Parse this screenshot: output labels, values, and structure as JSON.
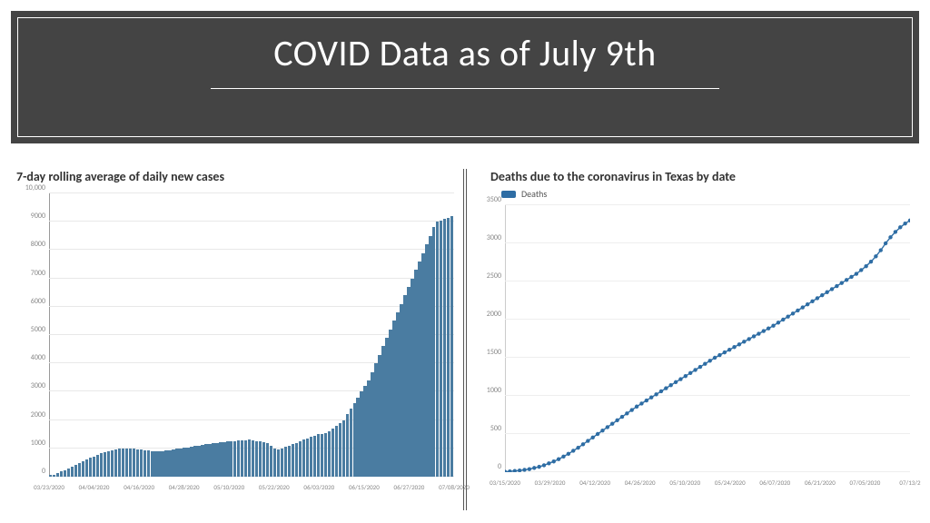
{
  "title": {
    "text": "COVID Data as of July 9th",
    "banner_bg": "#444444",
    "banner_border": "#ffffff",
    "text_color": "#ffffff",
    "fontsize": 40
  },
  "cases_chart": {
    "type": "bar",
    "title": "7-day rolling average of daily new cases",
    "title_fontsize": 14,
    "title_color": "#333333",
    "bar_color": "#4a7ca1",
    "grid_color": "#e8e8e8",
    "axis_color": "#999999",
    "tick_fontsize": 8,
    "y_ticks": [
      0,
      1000,
      2000,
      3000,
      4000,
      5000,
      6000,
      7000,
      8000,
      9000,
      10000
    ],
    "y_labels": [
      "0",
      "1000",
      "2000",
      "3000",
      "4000",
      "5000",
      "6000",
      "7000",
      "8000",
      "9000",
      "10,000"
    ],
    "ylim": [
      0,
      10000
    ],
    "x_labels": [
      "03/23/2020",
      "04/04/2020",
      "04/16/2020",
      "04/28/2020",
      "05/10/2020",
      "05/22/2020",
      "06/03/2020",
      "06/15/2020",
      "06/27/2020",
      "07/08/2020"
    ],
    "values": [
      50,
      80,
      120,
      180,
      240,
      300,
      360,
      420,
      480,
      540,
      600,
      660,
      720,
      770,
      820,
      860,
      900,
      930,
      960,
      980,
      1000,
      1010,
      1000,
      990,
      970,
      950,
      930,
      920,
      910,
      900,
      900,
      910,
      920,
      940,
      960,
      980,
      1000,
      1020,
      1040,
      1060,
      1080,
      1100,
      1120,
      1140,
      1160,
      1180,
      1200,
      1220,
      1230,
      1240,
      1250,
      1260,
      1270,
      1280,
      1290,
      1300,
      1280,
      1260,
      1240,
      1220,
      1200,
      1100,
      1000,
      950,
      1000,
      1050,
      1100,
      1150,
      1200,
      1250,
      1300,
      1350,
      1400,
      1450,
      1500,
      1500,
      1550,
      1600,
      1700,
      1800,
      1900,
      2000,
      2200,
      2400,
      2600,
      2800,
      3000,
      3200,
      3400,
      3700,
      4000,
      4300,
      4600,
      4900,
      5200,
      5500,
      5800,
      6100,
      6400,
      6700,
      7000,
      7300,
      7600,
      7900,
      8200,
      8500,
      8800,
      9000,
      9050,
      9100,
      9150,
      9200
    ]
  },
  "deaths_chart": {
    "type": "line",
    "title": "Deaths due to the coronavirus in Texas by date",
    "title_fontsize": 14,
    "title_color": "#333333",
    "legend_label": "Deaths",
    "line_color": "#2e6da4",
    "marker_color": "#2e6da4",
    "grid_color": "#eeeeee",
    "axis_color": "#bbbbbb",
    "tick_fontsize": 8,
    "y_ticks": [
      0,
      500,
      1000,
      1500,
      2000,
      2500,
      3000,
      3500
    ],
    "y_labels": [
      "0",
      "500",
      "1000",
      "1500",
      "2000",
      "2500",
      "3000",
      "3500"
    ],
    "ylim": [
      0,
      3500
    ],
    "x_labels": [
      "03/15/2020",
      "03/29/2020",
      "04/12/2020",
      "04/26/2020",
      "05/10/2020",
      "05/24/2020",
      "06/07/2020",
      "06/21/2020",
      "07/05/2020",
      "07/13/2"
    ],
    "values": [
      5,
      10,
      15,
      22,
      30,
      40,
      55,
      70,
      90,
      115,
      140,
      170,
      205,
      240,
      280,
      320,
      365,
      410,
      455,
      500,
      545,
      590,
      635,
      680,
      725,
      770,
      815,
      860,
      900,
      940,
      980,
      1020,
      1060,
      1100,
      1140,
      1180,
      1220,
      1260,
      1300,
      1340,
      1380,
      1420,
      1460,
      1500,
      1535,
      1570,
      1605,
      1640,
      1675,
      1710,
      1745,
      1780,
      1815,
      1850,
      1885,
      1920,
      1960,
      2000,
      2040,
      2080,
      2120,
      2160,
      2200,
      2240,
      2280,
      2320,
      2360,
      2400,
      2440,
      2480,
      2520,
      2560,
      2600,
      2650,
      2700,
      2760,
      2830,
      2910,
      3000,
      3080,
      3150,
      3210,
      3260,
      3300
    ],
    "marker_size": 2.2,
    "line_width": 1.4
  },
  "layout": {
    "bg": "#ffffff",
    "divider_color": "#555555"
  }
}
